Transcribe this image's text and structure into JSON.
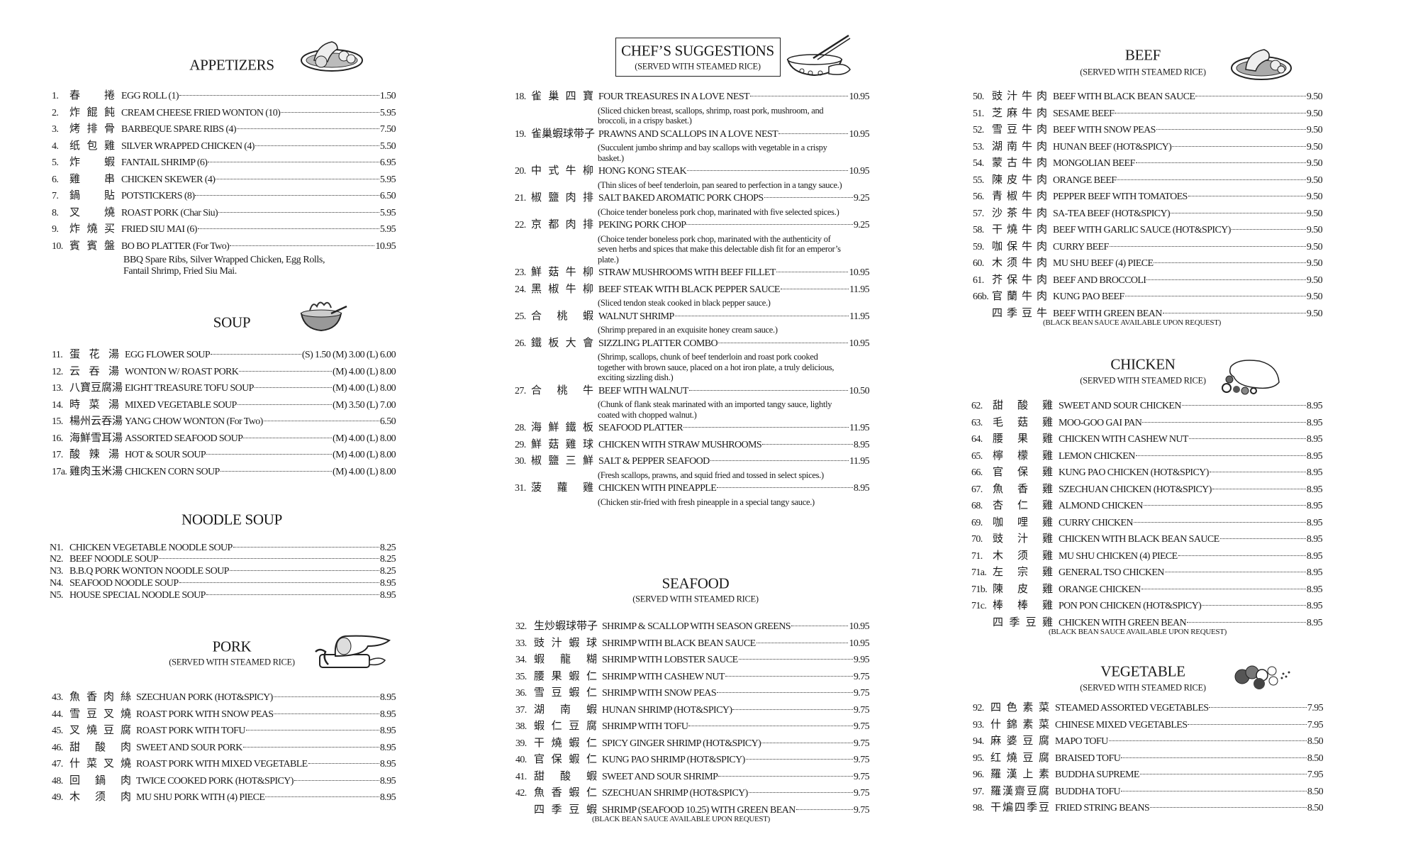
{
  "appetizers": {
    "title": "APPETIZERS",
    "icon": "appetizer-platter-illustration",
    "items": [
      {
        "num": "1.",
        "zh": "春捲",
        "en": "EGG ROLL (1)",
        "price": "1.50"
      },
      {
        "num": "2.",
        "zh": "炸餛飩",
        "en": "CREAM CHEESE FRIED WONTON (10)",
        "price": "5.95"
      },
      {
        "num": "3.",
        "zh": "烤排骨",
        "en": "BARBEQUE SPARE RIBS (4)",
        "price": "7.50"
      },
      {
        "num": "4.",
        "zh": "纸包雞",
        "en": "SILVER WRAPPED CHICKEN (4)",
        "price": "5.50"
      },
      {
        "num": "5.",
        "zh": "炸蝦",
        "en": "FANTAIL SHRIMP (6)",
        "price": "6.95"
      },
      {
        "num": "6.",
        "zh": "雞串",
        "en": "CHICKEN SKEWER (4)",
        "price": "5.95"
      },
      {
        "num": "7.",
        "zh": "鍋貼",
        "en": "POTSTICKERS (8)",
        "price": "6.50"
      },
      {
        "num": "8.",
        "zh": "叉燒",
        "en": "ROAST PORK (Char Siu)",
        "price": "5.95"
      },
      {
        "num": "9.",
        "zh": "炸燒买",
        "en": "FRIED SIU MAI (6)",
        "price": "5.95"
      },
      {
        "num": "10.",
        "zh": "賓賓盤",
        "en": "BO BO PLATTER (For Two)",
        "price": "10.95",
        "bodesc": "BBQ Spare Ribs, Silver Wrapped Chicken, Egg Rolls,\n Fantail Shrimp, Fried Siu Mai."
      }
    ]
  },
  "soup": {
    "title": "SOUP",
    "icon": "soup-bowl-illustration",
    "items": [
      {
        "num": "11.",
        "zh": "蛋花湯",
        "en": "EGG FLOWER SOUP",
        "price": "(S) 1.50 (M) 3.00 (L) 6.00"
      },
      {
        "num": "12.",
        "zh": "云吞湯",
        "en": "WONTON W/ ROAST PORK",
        "price": "(M) 4.00 (L) 8.00"
      },
      {
        "num": "13.",
        "zh": "八寶豆腐湯",
        "en": "EIGHT TREASURE TOFU SOUP",
        "price": "(M) 4.00 (L) 8.00"
      },
      {
        "num": "14.",
        "zh": "時菜湯",
        "en": "MIXED VEGETABLE SOUP",
        "price": "(M) 3.50 (L) 7.00"
      },
      {
        "num": "15.",
        "zh": "楊州云吞湯",
        "en": "YANG CHOW WONTON (For Two)",
        "price": "6.50"
      },
      {
        "num": "16.",
        "zh": "海鮮雪耳湯",
        "en": "ASSORTED SEAFOOD SOUP",
        "price": "(M) 4.00 (L) 8.00"
      },
      {
        "num": "17.",
        "zh": "酸辣湯",
        "en": "HOT & SOUR SOUP",
        "price": "(M) 4.00 (L) 8.00"
      },
      {
        "num": "17a.",
        "zh": "雞肉玉米湯",
        "en": "CHICKEN CORN SOUP",
        "price": "(M) 4.00 (L) 8.00"
      }
    ]
  },
  "noodle_soup": {
    "title": "NOODLE SOUP",
    "items": [
      {
        "num": "N1.",
        "en": "CHICKEN VEGETABLE NOODLE SOUP",
        "price": "8.25"
      },
      {
        "num": "N2.",
        "en": "BEEF NOODLE SOUP",
        "price": "8.25"
      },
      {
        "num": "N3.",
        "en": "B.B.Q PORK WONTON NOODLE SOUP",
        "price": "8.25"
      },
      {
        "num": "N4.",
        "en": "SEAFOOD NOODLE SOUP",
        "price": "8.95"
      },
      {
        "num": "N5.",
        "en": "HOUSE SPECIAL NOODLE SOUP",
        "price": "8.95"
      }
    ]
  },
  "pork": {
    "title": "PORK",
    "subtitle": "(SERVED WITH STEAMED RICE)",
    "icon": "roast-pork-illustration",
    "items": [
      {
        "num": "43.",
        "zh": "魚香肉絲",
        "en": "SZECHUAN PORK (HOT&SPICY)",
        "price": "8.95"
      },
      {
        "num": "44.",
        "zh": "雪豆叉燒",
        "en": "ROAST PORK WITH SNOW PEAS",
        "price": "8.95"
      },
      {
        "num": "45.",
        "zh": "叉燒豆腐",
        "en": "ROAST PORK WITH TOFU",
        "price": "8.95"
      },
      {
        "num": "46.",
        "zh": "甜酸肉",
        "en": "SWEET AND SOUR PORK",
        "price": "8.95"
      },
      {
        "num": "47.",
        "zh": "什菜叉燒",
        "en": "ROAST PORK WITH MIXED VEGETABLE",
        "price": "8.95"
      },
      {
        "num": "48.",
        "zh": "回鍋肉",
        "en": "TWICE COOKED PORK (HOT&SPICY)",
        "price": "8.95"
      },
      {
        "num": "49.",
        "zh": "木须肉",
        "en": "MU SHU PORK WITH (4) PIECE",
        "price": "8.95"
      }
    ]
  },
  "chef": {
    "title": "CHEF’S SUGGESTIONS",
    "subtitle": "(SERVED WITH STEAMED RICE)",
    "icon": "wok-illustration",
    "items": [
      {
        "num": "18.",
        "zh": "雀巢四寶",
        "en": "FOUR TREASURES IN A LOVE NEST",
        "price": "10.95",
        "desc": "(Sliced chicken breast, scallops, shrimp, roast pork, mushroom, and\n broccoli, in a crispy basket.)"
      },
      {
        "num": "19.",
        "zh": "雀巢蝦球带子",
        "en": "PRAWNS AND SCALLOPS IN A LOVE NEST",
        "price": "10.95",
        "desc": "(Succulent  jumbo shrimp and bay scallops with vegetable in a crispy\n basket.)"
      },
      {
        "num": "20.",
        "zh": "中式牛柳",
        "en": "HONG KONG STEAK",
        "price": "10.95",
        "desc": "(Thin slices of beef tenderloin, pan seared to perfection in a tangy sauce.)"
      },
      {
        "num": "21.",
        "zh": "椒鹽肉排",
        "en": "SALT BAKED AROMATIC PORK CHOPS",
        "price": "9.25",
        "desc": "(Choice tender boneless pork chop, marinated with five selected spices.)"
      },
      {
        "num": "22.",
        "zh": "京都肉排",
        "en": "PEKING PORK CHOP",
        "price": "9.25",
        "desc": "(Choice tender boneless pork chop, marinated with the authenticity of\n seven herbs and spices that make this delectable dish fit for an emperor’s\n plate.)"
      },
      {
        "num": "23.",
        "zh": "鮮菇牛柳",
        "en": "STRAW MUSHROOMS WITH BEEF FILLET",
        "price": "10.95"
      },
      {
        "num": "24.",
        "zh": "黑椒牛柳",
        "en": "BEEF STEAK WITH BLACK PEPPER SAUCE",
        "price": "11.95",
        "desc": "(Sliced tendon steak cooked in black pepper sauce.)"
      },
      {
        "num": "25.",
        "zh": "合桃蝦",
        "en": "WALNUT SHRIMP",
        "price": "11.95",
        "desc": "(Shrimp prepared in an exquisite honey cream sauce.)"
      },
      {
        "num": "26.",
        "zh": "鐵板大會",
        "en": "SIZZLING PLATTER COMBO",
        "price": "10.95",
        "desc": "(Shrimp, scallops, chunk of beef tenderloin and roast pork cooked\n together with brown sauce, placed on a hot iron plate, a truly delicious,\n exciting sizzling dish.)"
      },
      {
        "num": "27.",
        "zh": "合桃牛",
        "en": "BEEF WITH WALNUT",
        "price": "10.50",
        "desc": "(Chunk of flank steak marinated with an imported tangy sauce, lightly\n coated with chopped walnut.)"
      },
      {
        "num": "28.",
        "zh": "海鮮鐵板",
        "en": "SEAFOOD PLATTER",
        "price": "11.95"
      },
      {
        "num": "29.",
        "zh": "鮮菇雞球",
        "en": "CHICKEN WITH STRAW MUSHROOMS",
        "price": "8.95"
      },
      {
        "num": "30.",
        "zh": "椒鹽三鮮",
        "en": "SALT & PEPPER SEAFOOD",
        "price": "11.95",
        "desc": "(Fresh scallops, prawns, and squid fried and tossed in select spices.)"
      },
      {
        "num": "31.",
        "zh": "菠蘿雞",
        "en": "CHICKEN WITH PINEAPPLE",
        "price": "8.95",
        "desc": "(Chicken stir-fried with fresh pineapple in a special tangy sauce.)"
      }
    ]
  },
  "seafood": {
    "title": "SEAFOOD",
    "subtitle": "(SERVED WITH STEAMED RICE)",
    "items": [
      {
        "num": "32.",
        "zh": "生炒蝦球带子",
        "en": "SHRIMP & SCALLOP WITH SEASON GREENS",
        "price": "10.95"
      },
      {
        "num": "33.",
        "zh": "豉汁蝦球",
        "en": "SHRIMP WITH BLACK BEAN SAUCE",
        "price": "10.95"
      },
      {
        "num": "34.",
        "zh": "蝦龍糊",
        "en": "SHRIMP WITH LOBSTER SAUCE",
        "price": "9.95"
      },
      {
        "num": "35.",
        "zh": "腰果蝦仁",
        "en": "SHRIMP WITH CASHEW NUT",
        "price": "9.75"
      },
      {
        "num": "36.",
        "zh": "雪豆蝦仁",
        "en": "SHRIMP WITH SNOW PEAS",
        "price": "9.75"
      },
      {
        "num": "37.",
        "zh": "湖南蝦",
        "en": "HUNAN SHRIMP (HOT&SPICY)",
        "price": "9.75"
      },
      {
        "num": "38.",
        "zh": "蝦仁豆腐",
        "en": "SHRIMP WITH TOFU",
        "price": "9.75"
      },
      {
        "num": "39.",
        "zh": "干燒蝦仁",
        "en": "SPICY GINGER SHRIMP (HOT&SPICY)",
        "price": "9.75"
      },
      {
        "num": "40.",
        "zh": "官保蝦仁",
        "en": "KUNG PAO SHRIMP (HOT&SPICY)",
        "price": "9.75"
      },
      {
        "num": "41.",
        "zh": "甜酸蝦",
        "en": "SWEET AND SOUR SHRIMP",
        "price": "9.75"
      },
      {
        "num": "42.",
        "zh": "魚香蝦仁",
        "en": "SZECHUAN SHRIMP (HOT&SPICY)",
        "price": "9.75"
      },
      {
        "num": "",
        "zh": "四季豆蝦",
        "en": "SHRIMP (SEAFOOD 10.25) WITH GREEN BEAN",
        "price": "9.75",
        "note": "(BLACK BEAN SAUCE AVAILABLE UPON REQUEST)"
      }
    ]
  },
  "beef": {
    "title": "BEEF",
    "subtitle": "(SERVED WITH STEAMED RICE)",
    "icon": "beef-plate-illustration",
    "items": [
      {
        "num": "50.",
        "zh": "豉汁牛肉",
        "en": "BEEF WITH BLACK BEAN SAUCE",
        "price": "9.50"
      },
      {
        "num": "51.",
        "zh": "芝麻牛肉",
        "en": "SESAME BEEF",
        "price": "9.50"
      },
      {
        "num": "52.",
        "zh": "雪豆牛肉",
        "en": "BEEF WITH SNOW PEAS",
        "price": "9.50"
      },
      {
        "num": "53.",
        "zh": "湖南牛肉",
        "en": "HUNAN BEEF (HOT&SPICY)",
        "price": "9.50"
      },
      {
        "num": "54.",
        "zh": "蒙古牛肉",
        "en": "MONGOLIAN BEEF",
        "price": "9.50"
      },
      {
        "num": "55.",
        "zh": "陳皮牛肉",
        "en": "ORANGE BEEF",
        "price": "9.50"
      },
      {
        "num": "56.",
        "zh": "青椒牛肉",
        "en": "PEPPER BEEF WITH TOMATOES",
        "price": "9.50"
      },
      {
        "num": "57.",
        "zh": "沙茶牛肉",
        "en": "SA-TEA BEEF (HOT&SPICY)",
        "price": "9.50"
      },
      {
        "num": "58.",
        "zh": "干燒牛肉",
        "en": "BEEF WITH GARLIC SAUCE (HOT&SPICY)",
        "price": "9.50"
      },
      {
        "num": "59.",
        "zh": "咖保牛肉",
        "en": "CURRY BEEF",
        "price": "9.50"
      },
      {
        "num": "60.",
        "zh": "木须牛肉",
        "en": "MU SHU BEEF (4) PIECE",
        "price": "9.50"
      },
      {
        "num": "61.",
        "zh": "芥保牛肉",
        "en": "BEEF AND BROCCOLI",
        "price": "9.50"
      },
      {
        "num": "66b.",
        "zh": "官蘭牛肉",
        "en": "KUNG PAO BEEF",
        "price": "9.50"
      },
      {
        "num": "",
        "zh": "四季豆牛",
        "en": "BEEF WITH GREEN BEAN",
        "price": "9.50",
        "note": "(BLACK BEAN SAUCE AVAILABLE UPON REQUEST)"
      }
    ]
  },
  "chicken": {
    "title": "CHICKEN",
    "subtitle": "(SERVED WITH STEAMED RICE)",
    "icon": "roast-chicken-illustration",
    "items": [
      {
        "num": "62.",
        "zh": "甜酸雞",
        "en": "SWEET AND SOUR CHICKEN",
        "price": "8.95"
      },
      {
        "num": "63.",
        "zh": "毛菇雞",
        "en": "MOO-GOO GAI PAN",
        "price": "8.95"
      },
      {
        "num": "64.",
        "zh": "腰果雞",
        "en": "CHICKEN WITH CASHEW NUT",
        "price": "8.95"
      },
      {
        "num": "65.",
        "zh": "檸檬雞",
        "en": "LEMON CHICKEN",
        "price": "8.95"
      },
      {
        "num": "66.",
        "zh": "官保雞",
        "en": "KUNG PAO CHICKEN (HOT&SPICY)",
        "price": "8.95"
      },
      {
        "num": "67.",
        "zh": "魚香雞",
        "en": "SZECHUAN CHICKEN (HOT&SPICY)",
        "price": "8.95"
      },
      {
        "num": "68.",
        "zh": "杏仁雞",
        "en": "ALMOND CHICKEN",
        "price": "8.95"
      },
      {
        "num": "69.",
        "zh": "咖哩雞",
        "en": "CURRY CHICKEN",
        "price": "8.95"
      },
      {
        "num": "70.",
        "zh": "豉汁雞",
        "en": "CHICKEN WITH BLACK BEAN SAUCE",
        "price": "8.95"
      },
      {
        "num": "71.",
        "zh": "木须雞",
        "en": "MU SHU CHICKEN (4) PIECE",
        "price": "8.95"
      },
      {
        "num": "71a.",
        "zh": "左宗雞",
        "en": "GENERAL TSO CHICKEN",
        "price": "8.95"
      },
      {
        "num": "71b.",
        "zh": "陳皮雞",
        "en": "ORANGE CHICKEN",
        "price": "8.95"
      },
      {
        "num": "71c.",
        "zh": "棒棒雞",
        "en": "PON PON CHICKEN (HOT&SPICY)",
        "price": "8.95"
      },
      {
        "num": "",
        "zh": "四季豆雞",
        "en": "CHICKEN WITH GREEN BEAN",
        "price": "8.95",
        "note": "(BLACK BEAN SAUCE AVAILABLE UPON REQUEST)"
      }
    ]
  },
  "vegetable": {
    "title": "VEGETABLE",
    "subtitle": "(SERVED WITH STEAMED RICE)",
    "icon": "vegetables-illustration",
    "items": [
      {
        "num": "92.",
        "zh": "四色素菜",
        "en": "STEAMED ASSORTED VEGETABLES",
        "price": "7.95"
      },
      {
        "num": "93.",
        "zh": "什錦素菜",
        "en": "CHINESE MIXED VEGETABLES",
        "price": "7.95"
      },
      {
        "num": "94.",
        "zh": "麻婆豆腐",
        "en": "MAPO TOFU",
        "price": "8.50"
      },
      {
        "num": "95.",
        "zh": "红燒豆腐",
        "en": "BRAISED TOFU",
        "price": "8.50"
      },
      {
        "num": "96.",
        "zh": "羅漢上素",
        "en": "BUDDHA SUPREME",
        "price": "7.95"
      },
      {
        "num": "97.",
        "zh": "羅漢齋豆腐",
        "en": "BUDDHA TOFU",
        "price": "8.50"
      },
      {
        "num": "98.",
        "zh": "干煸四季豆",
        "en": "FRIED STRING BEANS",
        "price": "8.50"
      }
    ]
  }
}
